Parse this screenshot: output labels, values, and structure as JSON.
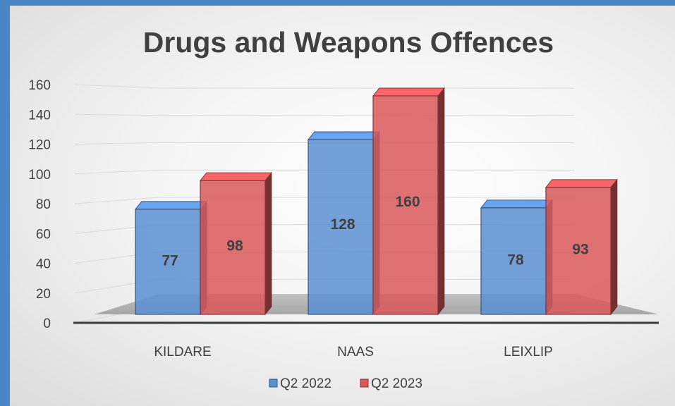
{
  "chart_data": {
    "type": "bar",
    "title": "Drugs and Weapons Offences",
    "categories": [
      "KILDARE",
      "NAAS",
      "LEIXLIP"
    ],
    "series": [
      {
        "name": "Q2 2022",
        "values": [
          77,
          128,
          78
        ],
        "color": "#5b8fd1"
      },
      {
        "name": "Q2 2023",
        "values": [
          98,
          160,
          93
        ],
        "color": "#d9585a"
      }
    ],
    "ylim": [
      0,
      160
    ],
    "yticks": [
      0,
      20,
      40,
      60,
      80,
      100,
      120,
      140,
      160
    ],
    "grid": true,
    "legend_position": "bottom",
    "style": "3d-clustered-column"
  }
}
